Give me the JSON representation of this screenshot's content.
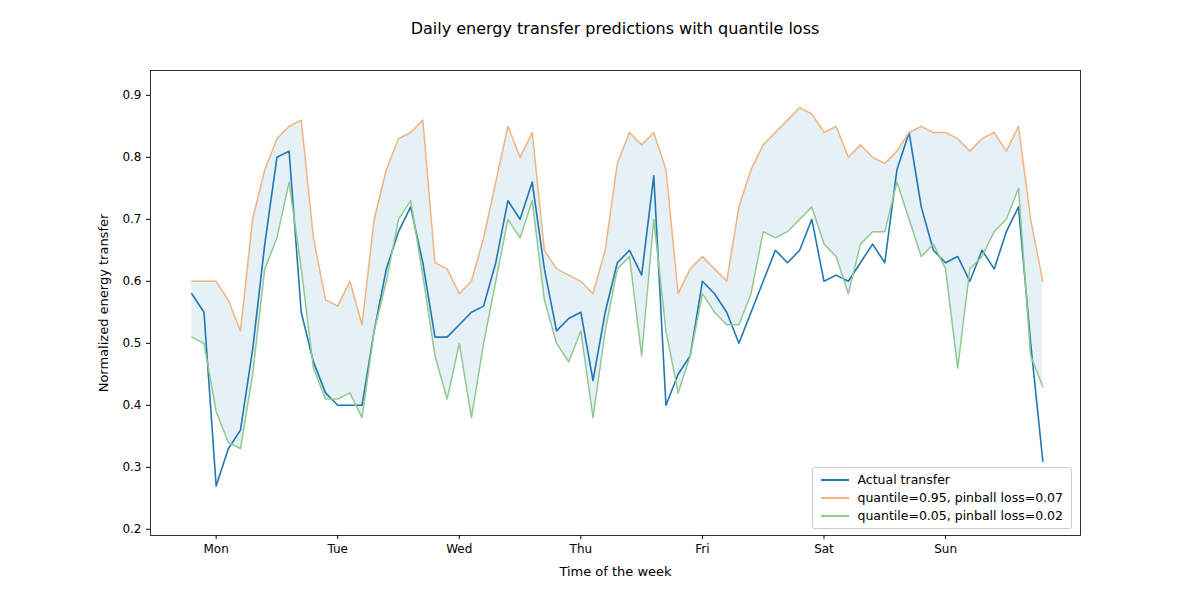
{
  "chart_data": {
    "type": "line",
    "title": "Daily energy transfer predictions with quantile loss",
    "x_label": "Time of the week",
    "y_label": "Normalized energy transfer",
    "x": [
      -0.2,
      -0.1,
      0.0,
      0.1,
      0.2,
      0.3,
      0.4,
      0.5,
      0.6,
      0.7,
      0.8,
      0.9,
      1.0,
      1.1,
      1.2,
      1.3,
      1.4,
      1.5,
      1.6,
      1.7,
      1.8,
      1.9,
      2.0,
      2.1,
      2.2,
      2.3,
      2.4,
      2.5,
      2.6,
      2.7,
      2.8,
      2.9,
      3.0,
      3.1,
      3.2,
      3.3,
      3.4,
      3.5,
      3.6,
      3.7,
      3.8,
      3.9,
      4.0,
      4.1,
      4.2,
      4.3,
      4.4,
      4.5,
      4.6,
      4.7,
      4.8,
      4.9,
      5.0,
      5.1,
      5.2,
      5.3,
      5.4,
      5.5,
      5.6,
      5.7,
      5.8,
      5.9,
      6.0,
      6.1,
      6.2,
      6.3,
      6.4,
      6.5,
      6.6,
      6.7,
      6.8
    ],
    "xlim": [
      -0.54,
      7.11
    ],
    "xticks": [
      {
        "value": 0,
        "label": "Mon"
      },
      {
        "value": 1,
        "label": "Tue"
      },
      {
        "value": 2,
        "label": "Wed"
      },
      {
        "value": 3,
        "label": "Thu"
      },
      {
        "value": 4,
        "label": "Fri"
      },
      {
        "value": 5,
        "label": "Sat"
      },
      {
        "value": 6,
        "label": "Sun"
      }
    ],
    "ylim": [
      0.19,
      0.94
    ],
    "yticks": [
      0.2,
      0.3,
      0.4,
      0.5,
      0.6,
      0.7,
      0.8,
      0.9
    ],
    "grid": false,
    "legend": "lower right",
    "series": [
      {
        "name": "Actual transfer",
        "color": "#1f77b4",
        "values": [
          0.58,
          0.55,
          0.27,
          0.33,
          0.36,
          0.49,
          0.66,
          0.8,
          0.81,
          0.55,
          0.47,
          0.42,
          0.4,
          0.4,
          0.4,
          0.52,
          0.62,
          0.68,
          0.72,
          0.63,
          0.51,
          0.51,
          0.53,
          0.55,
          0.56,
          0.63,
          0.73,
          0.7,
          0.76,
          0.62,
          0.52,
          0.54,
          0.55,
          0.44,
          0.55,
          0.63,
          0.65,
          0.61,
          0.77,
          0.4,
          0.45,
          0.48,
          0.6,
          0.58,
          0.55,
          0.5,
          0.55,
          0.6,
          0.65,
          0.63,
          0.65,
          0.7,
          0.6,
          0.61,
          0.6,
          0.63,
          0.66,
          0.63,
          0.78,
          0.84,
          0.72,
          0.65,
          0.63,
          0.64,
          0.6,
          0.65,
          0.62,
          0.68,
          0.72,
          0.5,
          0.31
        ]
      },
      {
        "name": "quantile=0.95, pinball loss=0.07",
        "color": "#f2b47e",
        "values": [
          0.6,
          0.6,
          0.6,
          0.57,
          0.52,
          0.7,
          0.78,
          0.83,
          0.85,
          0.86,
          0.67,
          0.57,
          0.56,
          0.6,
          0.53,
          0.7,
          0.78,
          0.83,
          0.84,
          0.86,
          0.63,
          0.62,
          0.58,
          0.6,
          0.67,
          0.76,
          0.85,
          0.8,
          0.84,
          0.65,
          0.62,
          0.61,
          0.6,
          0.58,
          0.65,
          0.79,
          0.84,
          0.82,
          0.84,
          0.78,
          0.58,
          0.62,
          0.64,
          0.62,
          0.6,
          0.72,
          0.78,
          0.82,
          0.84,
          0.86,
          0.88,
          0.87,
          0.84,
          0.85,
          0.8,
          0.82,
          0.8,
          0.79,
          0.81,
          0.84,
          0.85,
          0.84,
          0.84,
          0.83,
          0.81,
          0.83,
          0.84,
          0.81,
          0.85,
          0.7,
          0.6
        ]
      },
      {
        "name": "quantile=0.05, pinball loss=0.02",
        "color": "#8fc98f",
        "values": [
          0.51,
          0.5,
          0.39,
          0.34,
          0.33,
          0.45,
          0.62,
          0.67,
          0.76,
          0.62,
          0.46,
          0.41,
          0.41,
          0.42,
          0.38,
          0.52,
          0.6,
          0.7,
          0.73,
          0.61,
          0.48,
          0.41,
          0.5,
          0.38,
          0.5,
          0.6,
          0.7,
          0.67,
          0.73,
          0.57,
          0.5,
          0.47,
          0.52,
          0.38,
          0.52,
          0.62,
          0.64,
          0.48,
          0.7,
          0.52,
          0.42,
          0.48,
          0.58,
          0.55,
          0.53,
          0.53,
          0.58,
          0.68,
          0.67,
          0.68,
          0.7,
          0.72,
          0.66,
          0.64,
          0.58,
          0.66,
          0.68,
          0.68,
          0.76,
          0.7,
          0.64,
          0.66,
          0.62,
          0.46,
          0.62,
          0.64,
          0.68,
          0.7,
          0.75,
          0.48,
          0.43
        ]
      }
    ]
  }
}
